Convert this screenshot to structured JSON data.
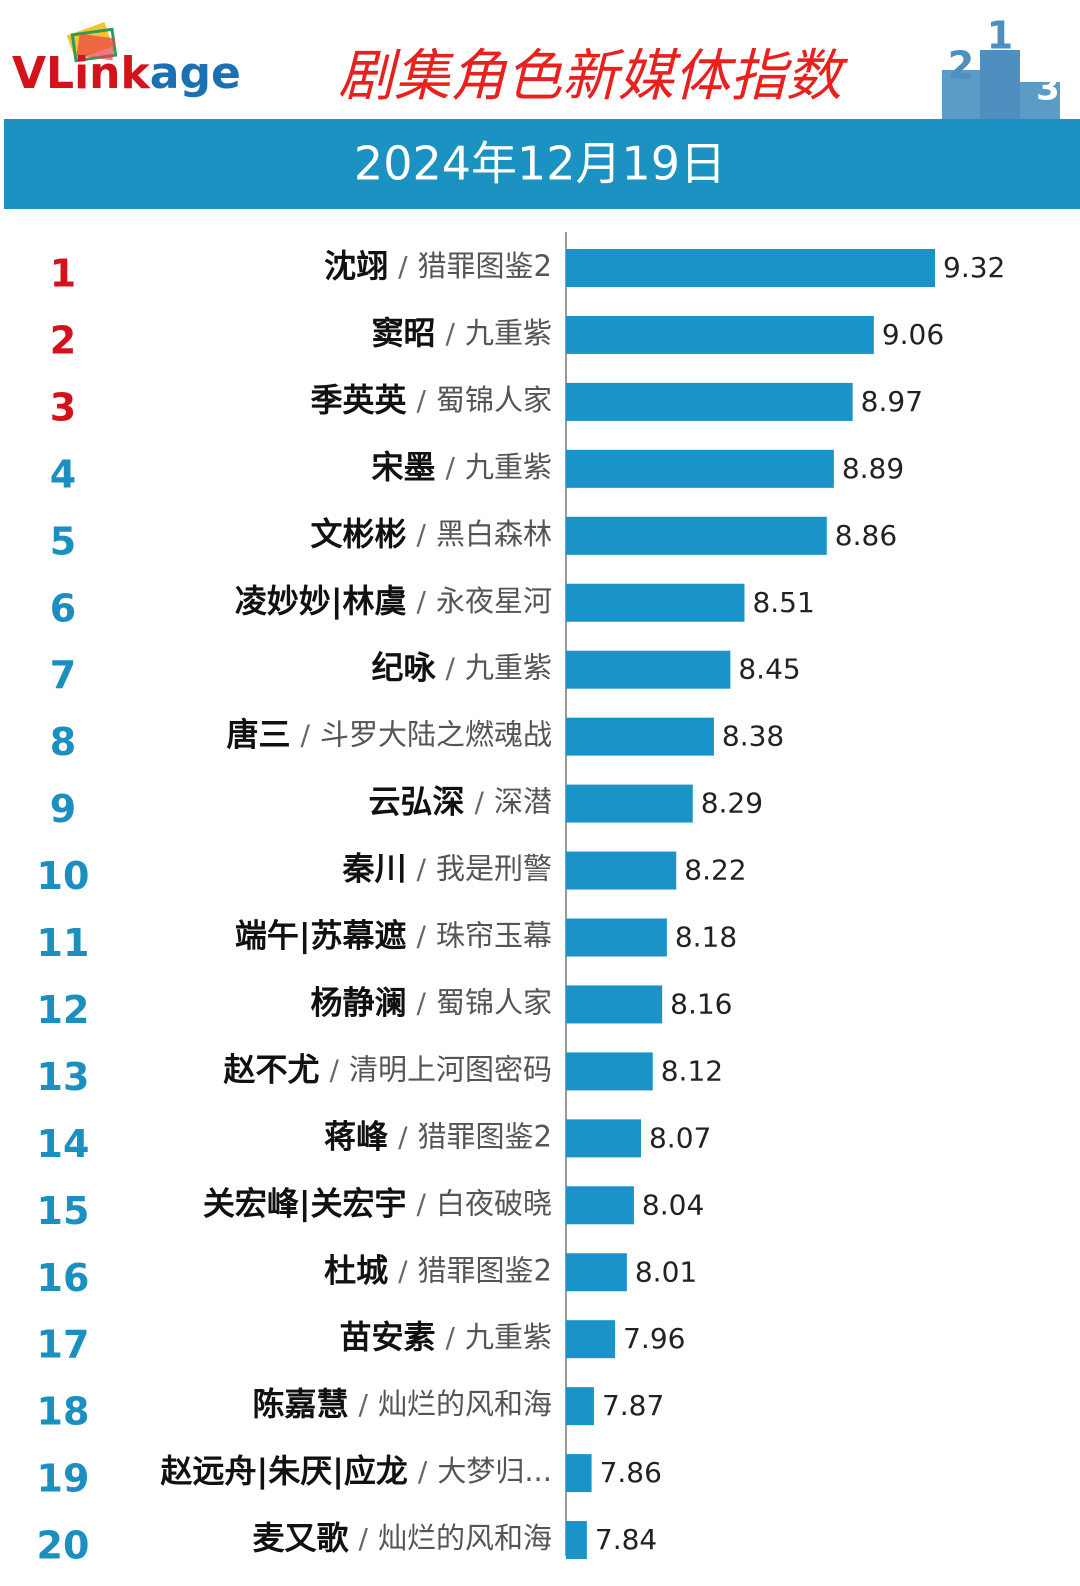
{
  "logo": [
    "VLink",
    "age"
  ],
  "podium": [
    "2",
    "1",
    "3"
  ],
  "chart_data": {
    "type": "bar",
    "title": "剧集角色新媒体指数",
    "subtitle": "2024年12月19日",
    "separator": "/",
    "ranks": [
      1,
      2,
      3,
      4,
      5,
      6,
      7,
      8,
      9,
      10,
      11,
      12,
      13,
      14,
      15,
      16,
      17,
      18,
      19,
      20
    ],
    "rank_colors": [
      "#d3121c",
      "#d3121c",
      "#d3121c",
      "#1a8fc0",
      "#1a8fc0",
      "#1a8fc0",
      "#1a8fc0",
      "#1a8fc0",
      "#1a8fc0",
      "#1a8fc0",
      "#1a8fc0",
      "#1a8fc0",
      "#1a8fc0",
      "#1a8fc0",
      "#1a8fc0",
      "#1a8fc0",
      "#1a8fc0",
      "#1a8fc0",
      "#1a8fc0",
      "#1a8fc0"
    ],
    "categories": [
      "沈翊",
      "窦昭",
      "季英英",
      "宋墨",
      "文彬彬",
      "凌妙妙|林虞",
      "纪咏",
      "唐三",
      "云弘深",
      "秦川",
      "端午|苏幕遮",
      "杨静澜",
      "赵不尤",
      "蒋峰",
      "关宏峰|关宏宇",
      "杜城",
      "苗安素",
      "陈嘉慧",
      "赵远舟|朱厌|应龙",
      "麦又歌"
    ],
    "dramas": [
      "猎罪图鉴2",
      "九重紫",
      "蜀锦人家",
      "九重紫",
      "黑白森林",
      "永夜星河",
      "九重紫",
      "斗罗大陆之燃魂战",
      "深潜",
      "我是刑警",
      "珠帘玉幕",
      "蜀锦人家",
      "清明上河图密码",
      "猎罪图鉴2",
      "白夜破晓",
      "猎罪图鉴2",
      "九重紫",
      "灿烂的风和海",
      "大梦归...",
      "灿烂的风和海"
    ],
    "values": [
      9.32,
      9.06,
      8.97,
      8.89,
      8.86,
      8.51,
      8.45,
      8.38,
      8.29,
      8.22,
      8.18,
      8.16,
      8.12,
      8.07,
      8.04,
      8.01,
      7.96,
      7.87,
      7.86,
      7.84
    ],
    "color": "#1a94c8",
    "horizontal": true
  }
}
